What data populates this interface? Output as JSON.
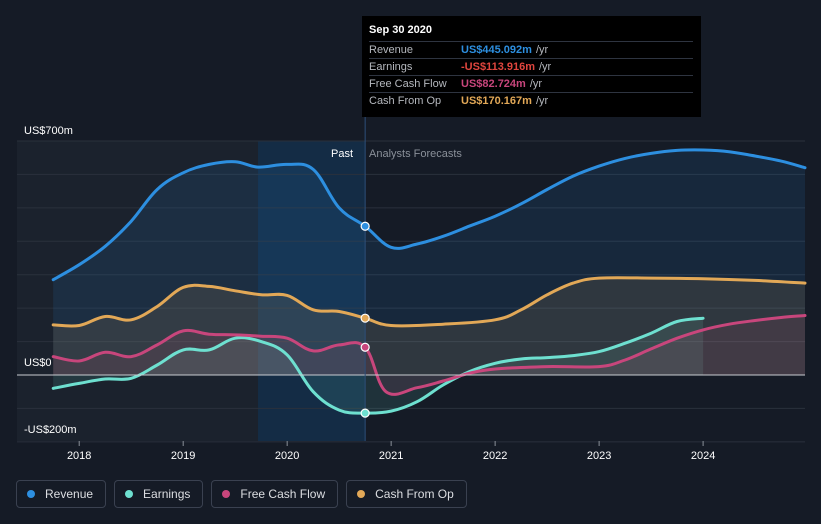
{
  "chart_data": {
    "type": "line",
    "ylabel_top": "US$700m",
    "ylabel_zero": "US$0",
    "ylabel_bottom": "-US$200m",
    "ylim": [
      -200,
      700
    ],
    "xlim": [
      2017.7,
      2024.98
    ],
    "past_label": "Past",
    "forecast_label": "Analysts Forecasts",
    "divider_x": 2020.75,
    "past_band_start": 2019.72,
    "x_ticks": [
      {
        "label": "2018",
        "x": 2018.0
      },
      {
        "label": "2019",
        "x": 2019.0
      },
      {
        "label": "2020",
        "x": 2020.0
      },
      {
        "label": "2021",
        "x": 2021.0
      },
      {
        "label": "2022",
        "x": 2022.0
      },
      {
        "label": "2023",
        "x": 2023.0
      },
      {
        "label": "2024",
        "x": 2024.0
      }
    ],
    "series": [
      {
        "name": "Revenue",
        "color": "#2d8fe0",
        "marker": [
          2020.75,
          445
        ],
        "points": [
          [
            2017.75,
            285
          ],
          [
            2018.0,
            330
          ],
          [
            2018.25,
            385
          ],
          [
            2018.5,
            460
          ],
          [
            2018.75,
            555
          ],
          [
            2019.0,
            605
          ],
          [
            2019.25,
            630
          ],
          [
            2019.5,
            638
          ],
          [
            2019.72,
            622
          ],
          [
            2020.0,
            630
          ],
          [
            2020.25,
            615
          ],
          [
            2020.5,
            500
          ],
          [
            2020.75,
            445
          ],
          [
            2021.0,
            382
          ],
          [
            2021.25,
            392
          ],
          [
            2021.5,
            415
          ],
          [
            2021.75,
            445
          ],
          [
            2022.0,
            475
          ],
          [
            2022.25,
            512
          ],
          [
            2022.5,
            555
          ],
          [
            2022.75,
            595
          ],
          [
            2023.0,
            625
          ],
          [
            2023.25,
            648
          ],
          [
            2023.5,
            663
          ],
          [
            2023.75,
            672
          ],
          [
            2024.0,
            673
          ],
          [
            2024.25,
            668
          ],
          [
            2024.5,
            655
          ],
          [
            2024.75,
            640
          ],
          [
            2024.98,
            620
          ]
        ]
      },
      {
        "name": "Earnings",
        "color": "#6ee0d0",
        "marker": [
          2020.75,
          -114
        ],
        "points": [
          [
            2017.75,
            -40
          ],
          [
            2018.0,
            -25
          ],
          [
            2018.25,
            -12
          ],
          [
            2018.5,
            -10
          ],
          [
            2018.75,
            30
          ],
          [
            2019.0,
            75
          ],
          [
            2019.25,
            75
          ],
          [
            2019.5,
            110
          ],
          [
            2019.75,
            100
          ],
          [
            2020.0,
            60
          ],
          [
            2020.25,
            -50
          ],
          [
            2020.5,
            -105
          ],
          [
            2020.75,
            -114
          ],
          [
            2021.0,
            -108
          ],
          [
            2021.25,
            -80
          ],
          [
            2021.5,
            -30
          ],
          [
            2021.75,
            10
          ],
          [
            2022.0,
            35
          ],
          [
            2022.25,
            48
          ],
          [
            2022.5,
            52
          ],
          [
            2022.75,
            58
          ],
          [
            2023.0,
            70
          ],
          [
            2023.25,
            95
          ],
          [
            2023.5,
            125
          ],
          [
            2023.75,
            160
          ],
          [
            2024.0,
            170
          ]
        ]
      },
      {
        "name": "Free Cash Flow",
        "color": "#c8467c",
        "marker": [
          2020.75,
          83
        ],
        "points": [
          [
            2017.75,
            55
          ],
          [
            2018.0,
            42
          ],
          [
            2018.25,
            68
          ],
          [
            2018.5,
            55
          ],
          [
            2018.75,
            90
          ],
          [
            2019.0,
            132
          ],
          [
            2019.25,
            122
          ],
          [
            2019.5,
            120
          ],
          [
            2019.75,
            116
          ],
          [
            2020.0,
            110
          ],
          [
            2020.25,
            72
          ],
          [
            2020.5,
            90
          ],
          [
            2020.75,
            83
          ],
          [
            2020.95,
            -50
          ],
          [
            2021.25,
            -38
          ],
          [
            2021.5,
            -18
          ],
          [
            2021.75,
            5
          ],
          [
            2022.0,
            18
          ],
          [
            2022.5,
            25
          ],
          [
            2023.0,
            25
          ],
          [
            2023.25,
            45
          ],
          [
            2023.5,
            78
          ],
          [
            2023.75,
            110
          ],
          [
            2024.0,
            135
          ],
          [
            2024.25,
            152
          ],
          [
            2024.5,
            163
          ],
          [
            2024.75,
            172
          ],
          [
            2024.98,
            178
          ]
        ]
      },
      {
        "name": "Cash From Op",
        "color": "#e2a857",
        "marker": [
          2020.75,
          170
        ],
        "points": [
          [
            2017.75,
            150
          ],
          [
            2018.0,
            148
          ],
          [
            2018.25,
            175
          ],
          [
            2018.5,
            165
          ],
          [
            2018.75,
            205
          ],
          [
            2019.0,
            262
          ],
          [
            2019.25,
            265
          ],
          [
            2019.5,
            252
          ],
          [
            2019.75,
            240
          ],
          [
            2020.0,
            238
          ],
          [
            2020.25,
            195
          ],
          [
            2020.5,
            190
          ],
          [
            2020.75,
            170
          ],
          [
            2021.0,
            148
          ],
          [
            2021.5,
            152
          ],
          [
            2022.0,
            165
          ],
          [
            2022.25,
            195
          ],
          [
            2022.5,
            240
          ],
          [
            2022.75,
            275
          ],
          [
            2023.0,
            290
          ],
          [
            2023.5,
            290
          ],
          [
            2024.0,
            288
          ],
          [
            2024.5,
            283
          ],
          [
            2024.98,
            275
          ]
        ]
      }
    ]
  },
  "tooltip": {
    "date": "Sep 30 2020",
    "rows": [
      {
        "label": "Revenue",
        "value": "US$445.092m",
        "unit": "/yr",
        "color": "#2d8fe0"
      },
      {
        "label": "Earnings",
        "value": "-US$113.916m",
        "unit": "/yr",
        "color": "#e0463e"
      },
      {
        "label": "Free Cash Flow",
        "value": "US$82.724m",
        "unit": "/yr",
        "color": "#c8467c"
      },
      {
        "label": "Cash From Op",
        "value": "US$170.167m",
        "unit": "/yr",
        "color": "#e2a857"
      }
    ]
  },
  "legend": [
    {
      "label": "Revenue",
      "color": "#2d8fe0"
    },
    {
      "label": "Earnings",
      "color": "#6ee0d0"
    },
    {
      "label": "Free Cash Flow",
      "color": "#c8467c"
    },
    {
      "label": "Cash From Op",
      "color": "#e2a857"
    }
  ]
}
